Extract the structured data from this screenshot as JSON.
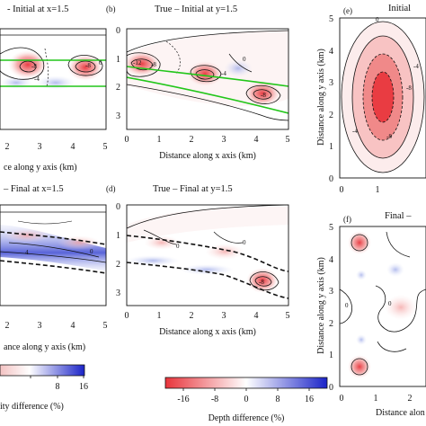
{
  "panels": {
    "a": {
      "title": "- Initial at x=1.5"
    },
    "b": {
      "label": "(b)",
      "title": "True – Initial at y=1.5"
    },
    "c": {
      "title": "– Final at x=1.5"
    },
    "d": {
      "label": "(d)",
      "title": "True – Final at y=1.5"
    },
    "e": {
      "label": "(e)",
      "title": "Initial"
    },
    "f": {
      "label": "(f)",
      "title": "Final –"
    }
  },
  "axes": {
    "a_xlabel": "ce along y axis (km)",
    "b_xlabel": "Distance along x axis (km)",
    "c_xlabel": "ance along y axis (km)",
    "d_xlabel": "Distance along x axis (km)",
    "e_ylabel": "Distance along y axis (km)",
    "f_ylabel": "Distance along y axis (km)",
    "f_xlabel": "Distance alon",
    "x_ticks_left": [
      "2",
      "3",
      "4",
      "5"
    ],
    "x_ticks_mid": [
      "0",
      "1",
      "2",
      "3",
      "4",
      "5"
    ],
    "depth_ticks": [
      "0",
      "1",
      "2",
      "3"
    ],
    "y_ticks_right": [
      "0",
      "1",
      "2",
      "3",
      "4",
      "5"
    ],
    "x_ticks_right": [
      "0",
      "1"
    ],
    "x_ticks_right_f": [
      "0",
      "1",
      "2"
    ]
  },
  "contour_labels": {
    "a": [
      "0",
      "-8",
      "-8",
      "0",
      "-4"
    ],
    "b": [
      "-12",
      "-8",
      "-4",
      "-4",
      "0",
      "-8",
      "0"
    ],
    "c": [
      "0",
      "0",
      "4",
      "4"
    ],
    "d": [
      "0",
      "0",
      "0",
      "-8",
      "4",
      "0"
    ],
    "e": [
      "0",
      "-4",
      "-4",
      "-8",
      "-8",
      "-4"
    ],
    "f": [
      "0",
      "0",
      "0",
      "0"
    ]
  },
  "colorbars": [
    {
      "label": "ity difference (%)",
      "ticks": [
        "8",
        "16"
      ],
      "colors": [
        "#e8343b",
        "#ffffff",
        "#1b24c8"
      ]
    },
    {
      "label": "Depth difference (%)",
      "ticks": [
        "-16",
        "-8",
        "0",
        "8",
        "16"
      ],
      "colors": [
        "#e8343b",
        "#ffffff",
        "#1b24c8"
      ]
    }
  ],
  "colors": {
    "red": "#e8343b",
    "blue": "#1b24c8",
    "green": "#22c61a",
    "line": "#111111"
  }
}
